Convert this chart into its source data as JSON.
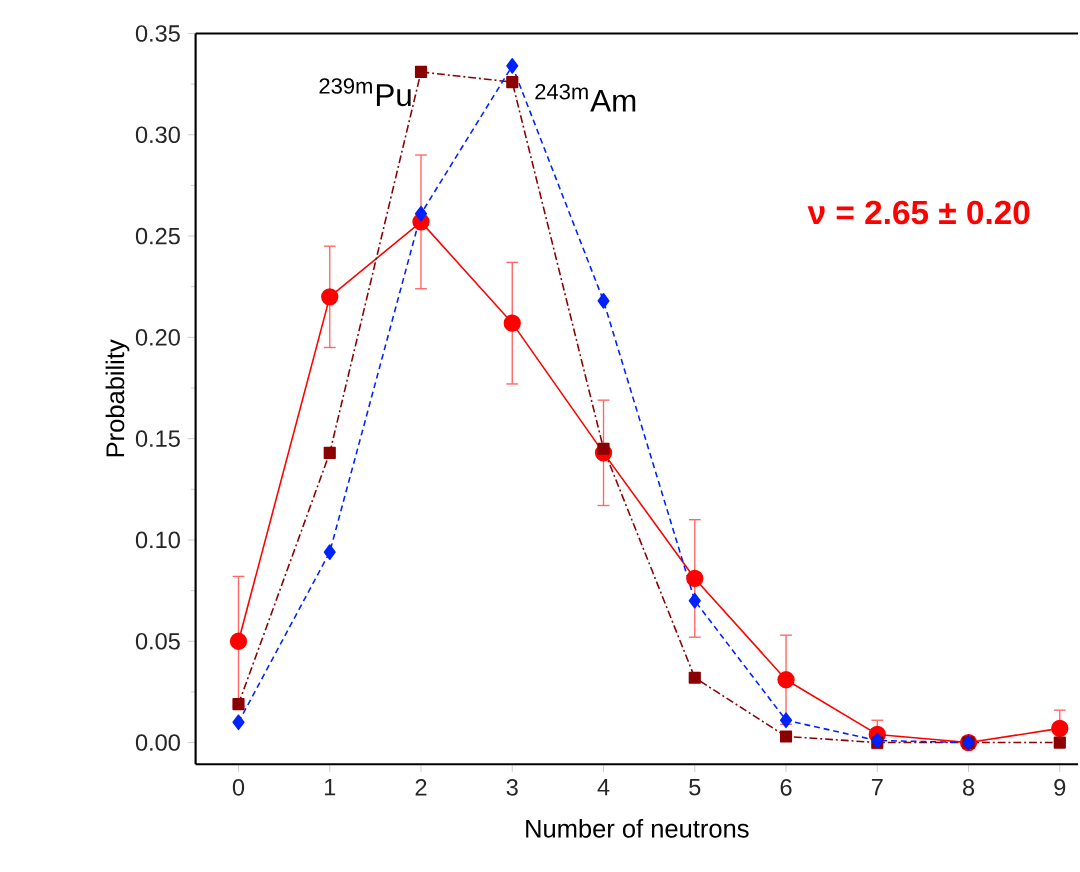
{
  "chart_data": {
    "type": "line",
    "xlabel": "Number of neutrons",
    "ylabel": "Probability",
    "x": [
      0,
      1,
      2,
      3,
      4,
      5,
      6,
      7,
      8,
      9
    ],
    "series": [
      {
        "color": "#ff0000",
        "marker": "circle",
        "line_style": "solid",
        "values": [
          0.05,
          0.22,
          0.257,
          0.207,
          0.143,
          0.081,
          0.031,
          0.004,
          0.0,
          0.007
        ],
        "errors": [
          0.032,
          0.025,
          0.033,
          0.03,
          0.026,
          0.029,
          0.022,
          0.007,
          null,
          0.009
        ]
      },
      {
        "name": "$^{239m}$Pu",
        "color": "#8b0000",
        "marker": "square",
        "line_style": "dashdot",
        "values": [
          0.019,
          0.143,
          0.331,
          0.326,
          0.145,
          0.032,
          0.003,
          0.0,
          0.0,
          0.0
        ]
      },
      {
        "name": "$^{243m}$Am",
        "color": "#0022ff",
        "marker": "diamond",
        "line_style": "dashed",
        "values": [
          0.01,
          0.094,
          0.261,
          0.334,
          0.218,
          0.07,
          0.011,
          0.001,
          0.0,
          null
        ]
      }
    ],
    "xlim": [
      -0.47,
      9.2
    ],
    "ylim": [
      -0.0107,
      0.35
    ],
    "xticks": [
      0,
      1,
      2,
      3,
      4,
      5,
      6,
      7,
      8,
      9
    ],
    "yticks": [
      {
        "value": 0,
        "label": "0.00"
      },
      {
        "value": 0.05,
        "label": "0.05"
      },
      {
        "value": 0.1,
        "label": "0.10"
      },
      {
        "value": 0.15,
        "label": "0.15"
      },
      {
        "value": 0.2,
        "label": "0.20"
      },
      {
        "value": 0.25,
        "label": "0.25"
      },
      {
        "value": 0.3,
        "label": "0.30"
      },
      {
        "value": 0.35,
        "label": "0.35"
      }
    ],
    "annotations": [
      "**ν = 2.65 ± 0.20**"
    ]
  }
}
